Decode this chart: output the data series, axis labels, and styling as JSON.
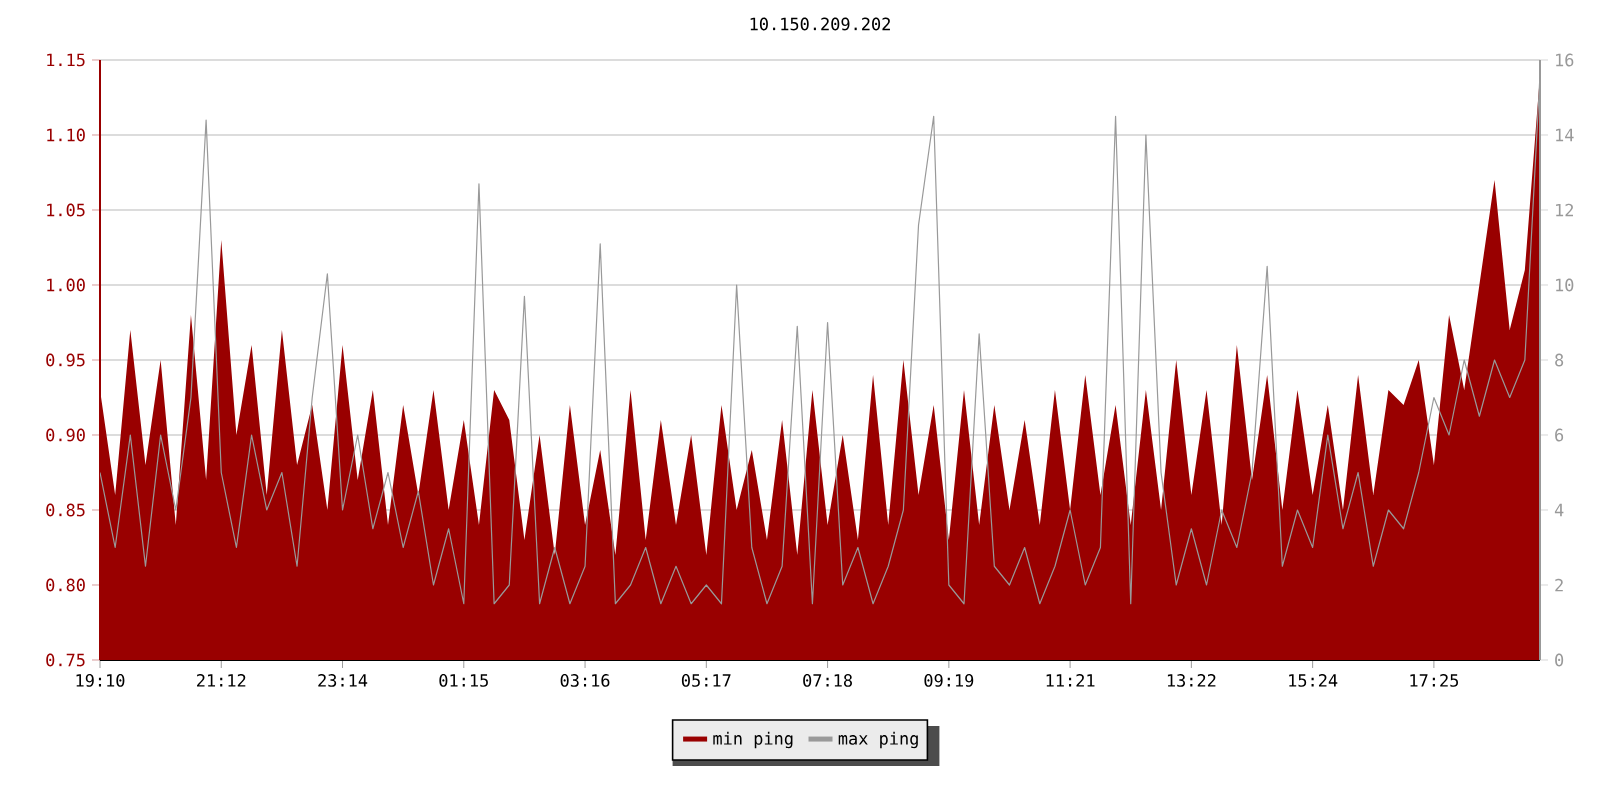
{
  "chart_data": {
    "type": "area",
    "title": "10.150.209.202",
    "categories": [
      "19:10",
      null,
      null,
      null,
      null,
      null,
      null,
      null,
      "21:12",
      null,
      null,
      null,
      null,
      null,
      null,
      null,
      "23:14",
      null,
      null,
      null,
      null,
      null,
      null,
      null,
      "01:15",
      null,
      null,
      null,
      null,
      null,
      null,
      null,
      "03:16",
      null,
      null,
      null,
      null,
      null,
      null,
      null,
      "05:17",
      null,
      null,
      null,
      null,
      null,
      null,
      null,
      "07:18",
      null,
      null,
      null,
      null,
      null,
      null,
      null,
      "09:19",
      null,
      null,
      null,
      null,
      null,
      null,
      null,
      "11:21",
      null,
      null,
      null,
      null,
      null,
      null,
      null,
      "13:22",
      null,
      null,
      null,
      null,
      null,
      null,
      null,
      "15:24",
      null,
      null,
      null,
      null,
      null,
      null,
      null,
      "17:25",
      null,
      null,
      null,
      null,
      null,
      null,
      null
    ],
    "series": [
      {
        "name": "min ping",
        "color": "#990000",
        "values": [
          0.93,
          0.86,
          0.97,
          0.88,
          0.95,
          0.84,
          0.98,
          0.87,
          1.03,
          0.9,
          0.96,
          0.86,
          0.97,
          0.88,
          0.92,
          0.85,
          0.96,
          0.87,
          0.93,
          0.84,
          0.92,
          0.86,
          0.93,
          0.85,
          0.91,
          0.84,
          0.93,
          0.91,
          0.83,
          0.9,
          0.82,
          0.92,
          0.84,
          0.89,
          0.82,
          0.93,
          0.83,
          0.91,
          0.84,
          0.9,
          0.82,
          0.92,
          0.85,
          0.89,
          0.83,
          0.91,
          0.82,
          0.93,
          0.84,
          0.9,
          0.83,
          0.94,
          0.84,
          0.95,
          0.86,
          0.92,
          0.83,
          0.93,
          0.84,
          0.92,
          0.85,
          0.91,
          0.84,
          0.93,
          0.85,
          0.94,
          0.86,
          0.92,
          0.84,
          0.93,
          0.85,
          0.95,
          0.86,
          0.93,
          0.84,
          0.96,
          0.87,
          0.94,
          0.85,
          0.93,
          0.86,
          0.92,
          0.85,
          0.94,
          0.86,
          0.93,
          0.92,
          0.95,
          0.88,
          0.98,
          0.93,
          1.0,
          1.07,
          0.97,
          1.01,
          1.14
        ]
      },
      {
        "name": "max ping",
        "type": "line",
        "axis": "y2",
        "color": "#999999",
        "values": [
          5,
          3,
          6,
          2.5,
          6,
          4,
          7,
          14.4,
          5,
          3,
          6,
          4,
          5,
          2.5,
          7,
          10.3,
          4,
          6,
          3.5,
          5,
          3,
          4.5,
          2,
          3.5,
          1.5,
          12.7,
          1.5,
          2,
          9.7,
          1.5,
          3,
          1.5,
          2.5,
          11.1,
          1.5,
          2,
          3,
          1.5,
          2.5,
          1.5,
          2,
          1.5,
          10,
          3,
          1.5,
          2.5,
          8.9,
          1.5,
          9,
          2,
          3,
          1.5,
          2.5,
          4,
          11.6,
          14.5,
          2,
          1.5,
          8.7,
          2.5,
          2,
          3,
          1.5,
          2.5,
          4,
          2,
          3,
          14.5,
          1.5,
          14,
          5,
          2,
          3.5,
          2,
          4,
          3,
          5,
          10.5,
          2.5,
          4,
          3,
          6,
          3.5,
          5,
          2.5,
          4,
          3.5,
          5,
          7,
          6,
          8,
          6.5,
          8,
          7,
          8,
          15.6
        ]
      }
    ],
    "ylim": [
      0.75,
      1.15
    ],
    "yticks": [
      {
        "value": 0.75,
        "label": "0.75"
      },
      {
        "value": 0.8,
        "label": "0.80"
      },
      {
        "value": 0.85,
        "label": "0.85"
      },
      {
        "value": 0.9,
        "label": "0.90"
      },
      {
        "value": 0.95,
        "label": "0.95"
      },
      {
        "value": 1.0,
        "label": "1.00"
      },
      {
        "value": 1.05,
        "label": "1.05"
      },
      {
        "value": 1.1,
        "label": "1.10"
      },
      {
        "value": 1.15,
        "label": "1.15"
      }
    ],
    "y2lim": [
      0,
      16
    ],
    "y2ticks": [
      0,
      2,
      4,
      6,
      8,
      10,
      12,
      14,
      16
    ],
    "grid": "y",
    "legend": "bottom"
  }
}
